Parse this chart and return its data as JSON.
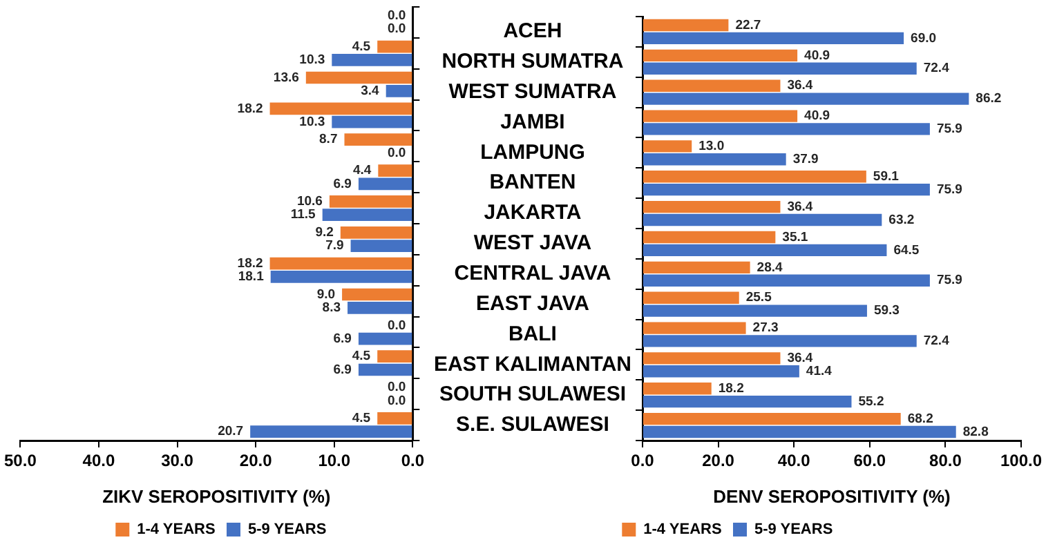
{
  "chart_data": [
    {
      "type": "bar",
      "orientation": "horizontal",
      "xlabel": "ZIKV SEROPOSITIVITY (%)",
      "categories": [
        null,
        null,
        null,
        null,
        null,
        null,
        null,
        null,
        null,
        null,
        null,
        null,
        null,
        null
      ],
      "series": [
        {
          "name": "1-4 YEARS",
          "color": "#ed7d31",
          "values": [
            0.0,
            4.5,
            13.6,
            18.2,
            8.7,
            4.4,
            10.6,
            9.2,
            18.2,
            9.0,
            0.0,
            4.5,
            0.0,
            4.5
          ],
          "value_labels": [
            "0.0",
            "4.5",
            "13.6",
            "18.2",
            "8.7",
            "4.4",
            "10.6",
            "9.2",
            "18.2",
            "9.0",
            "0.0",
            "4.5",
            "0.0",
            "4.5"
          ]
        },
        {
          "name": "5-9 YEARS",
          "color": "#4472c4",
          "values": [
            0.0,
            10.3,
            3.4,
            10.3,
            0.0,
            6.9,
            11.5,
            7.9,
            18.1,
            8.3,
            6.9,
            6.9,
            0.0,
            20.7
          ],
          "value_labels": [
            "0.0",
            "10.3",
            "3.4",
            "10.3",
            "0.0",
            "6.9",
            "11.5",
            "7.9",
            "18.1",
            "8.3",
            "6.9",
            "6.9",
            "0.0",
            "20.7"
          ]
        }
      ],
      "xlim": [
        50,
        0
      ],
      "xticks": [
        {
          "value": 50,
          "label": "50.0"
        },
        {
          "value": 40,
          "label": "40.0"
        },
        {
          "value": 30,
          "label": "30.0"
        },
        {
          "value": 20,
          "label": "20.0"
        },
        {
          "value": 10,
          "label": "10.0"
        },
        {
          "value": 0,
          "label": "0.0"
        }
      ],
      "tick_labels": "x",
      "grid": false,
      "legend": "bottom"
    },
    {
      "type": "bar",
      "orientation": "horizontal",
      "xlabel": "DENV SEROPOSITIVITY (%)",
      "categories": [
        "ACEH",
        "NORTH SUMATRA",
        "WEST SUMATRA",
        "JAMBI",
        "LAMPUNG",
        "BANTEN",
        "JAKARTA",
        "WEST JAVA",
        "CENTRAL JAVA",
        "EAST JAVA",
        "BALI",
        "EAST KALIMANTAN",
        "SOUTH SULAWESI",
        "S.E. SULAWESI"
      ],
      "series": [
        {
          "name": "1-4 YEARS",
          "color": "#ed7d31",
          "values": [
            22.7,
            40.9,
            36.4,
            40.9,
            13.0,
            59.1,
            36.4,
            35.1,
            28.4,
            25.5,
            27.3,
            36.4,
            18.2,
            68.2
          ],
          "value_labels": [
            "22.7",
            "40.9",
            "36.4",
            "40.9",
            "13.0",
            "59.1",
            "36.4",
            "35.1",
            "28.4",
            "25.5",
            "27.3",
            "36.4",
            "18.2",
            "68.2"
          ]
        },
        {
          "name": "5-9 YEARS",
          "color": "#4472c4",
          "values": [
            69.0,
            72.4,
            86.2,
            75.9,
            37.9,
            75.9,
            63.2,
            64.5,
            75.9,
            59.3,
            72.4,
            41.4,
            55.2,
            82.8
          ],
          "value_labels": [
            "69.0",
            "72.4",
            "86.2",
            "75.9",
            "37.9",
            "75.9",
            "63.2",
            "64.5",
            "75.9",
            "59.3",
            "72.4",
            "41.4",
            "55.2",
            "82.8"
          ]
        }
      ],
      "xlim": [
        0,
        100
      ],
      "xticks": [
        {
          "value": 0,
          "label": "0.0"
        },
        {
          "value": 20,
          "label": "20.0"
        },
        {
          "value": 40,
          "label": "40.0"
        },
        {
          "value": 60,
          "label": "60.0"
        },
        {
          "value": 80,
          "label": "80.0"
        },
        {
          "value": 100,
          "label": "100.0"
        }
      ],
      "grid": false,
      "legend": "bottom"
    }
  ]
}
